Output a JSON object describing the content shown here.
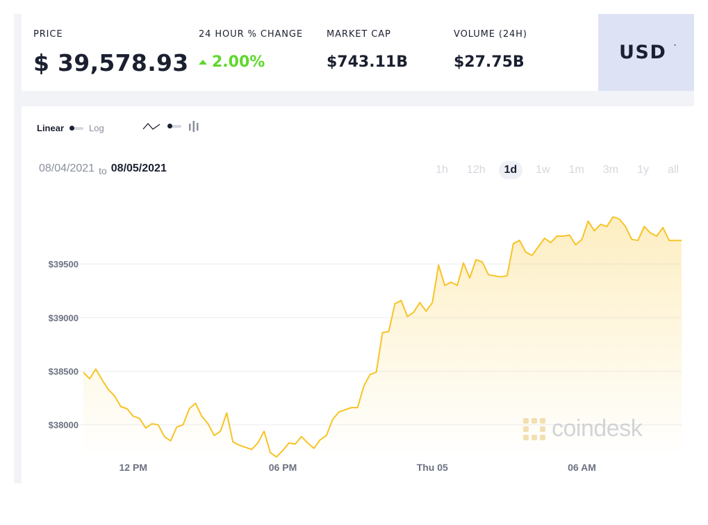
{
  "stats": {
    "price_label": "PRICE",
    "price_value": "$ 39,578.93",
    "change_label": "24 HOUR % CHANGE",
    "change_value": "2.00%",
    "change_direction": "up",
    "market_cap_label": "MARKET CAP",
    "market_cap_value": "$743.11B",
    "volume_label": "VOLUME (24H)",
    "volume_value": "$27.75B"
  },
  "currency": {
    "label": "USD",
    "caret": "ˋ"
  },
  "controls": {
    "scale_linear": "Linear",
    "scale_log": "Log",
    "date_from": "08/04/2021",
    "date_to_word": "to",
    "date_to": "08/05/2021",
    "ranges": [
      "1h",
      "12h",
      "1d",
      "1w",
      "1m",
      "3m",
      "1y",
      "all"
    ],
    "active_range": "1d"
  },
  "watermark": "coindesk",
  "colors": {
    "line": "#f7c325",
    "positive": "#5ed82c",
    "text_dark": "#1b2030",
    "text_muted": "#8a8f9c",
    "currency_bg": "#dde2f5"
  },
  "chart_data": {
    "type": "area",
    "xlabel": "",
    "ylabel": "",
    "ylim": [
      37700,
      40000
    ],
    "yticks": [
      38000,
      38500,
      39000,
      39500
    ],
    "ytick_labels": [
      "$38000",
      "$38500",
      "$39000",
      "$39500"
    ],
    "xlim_hours": [
      0,
      24
    ],
    "xtick_positions_hours": [
      2,
      8,
      14,
      20
    ],
    "xtick_labels": [
      "12 PM",
      "06 PM",
      "Thu 05",
      "06 AM"
    ],
    "grid": true,
    "series": [
      {
        "x_hours": [
          0.0,
          0.25,
          0.5,
          0.75,
          1.0,
          1.25,
          1.5,
          1.75,
          2.0,
          2.25,
          2.5,
          2.75,
          3.0,
          3.25,
          3.5,
          3.75,
          4.0,
          4.25,
          4.5,
          4.75,
          5.0,
          5.25,
          5.5,
          5.75,
          6.0,
          6.25,
          6.5,
          6.75,
          7.0,
          7.25,
          7.5,
          7.75,
          8.0,
          8.25,
          8.5,
          8.75,
          9.0,
          9.25,
          9.5,
          9.75,
          10.0,
          10.25,
          10.5,
          10.75,
          11.0,
          11.25,
          11.5,
          11.75,
          12.0,
          12.25,
          12.5,
          12.75,
          13.0,
          13.25,
          13.5,
          13.75,
          14.0,
          14.25,
          14.5,
          14.75,
          15.0,
          15.25,
          15.5,
          15.75,
          16.0,
          16.25,
          16.5,
          16.75,
          17.0,
          17.25,
          17.5,
          17.75,
          18.0,
          18.25,
          18.5,
          18.75,
          19.0,
          19.25,
          19.5,
          19.75,
          20.0,
          20.25,
          20.5,
          20.75,
          21.0,
          21.25,
          21.5,
          21.75,
          22.0,
          22.25,
          22.5,
          22.75,
          23.0,
          23.25,
          23.5,
          23.75,
          24.0
        ],
        "values": [
          38490,
          38430,
          38520,
          38420,
          38330,
          38270,
          38170,
          38150,
          38080,
          38060,
          37970,
          38010,
          38000,
          37890,
          37850,
          37980,
          38000,
          38150,
          38200,
          38080,
          38010,
          37900,
          37940,
          38110,
          37840,
          37810,
          37790,
          37770,
          37830,
          37940,
          37740,
          37700,
          37760,
          37830,
          37820,
          37890,
          37830,
          37780,
          37860,
          37900,
          38050,
          38120,
          38140,
          38160,
          38160,
          38360,
          38470,
          38490,
          38860,
          38870,
          39130,
          39160,
          39010,
          39050,
          39140,
          39060,
          39140,
          39490,
          39300,
          39330,
          39300,
          39510,
          39370,
          39540,
          39520,
          39400,
          39390,
          39380,
          39390,
          39690,
          39720,
          39610,
          39580,
          39660,
          39740,
          39700,
          39760,
          39760,
          39770,
          39680,
          39730,
          39900,
          39810,
          39870,
          39850,
          39940,
          39920,
          39850,
          39730,
          39720,
          39850,
          39790,
          39760,
          39840,
          39720,
          39720,
          39720
        ]
      }
    ]
  }
}
